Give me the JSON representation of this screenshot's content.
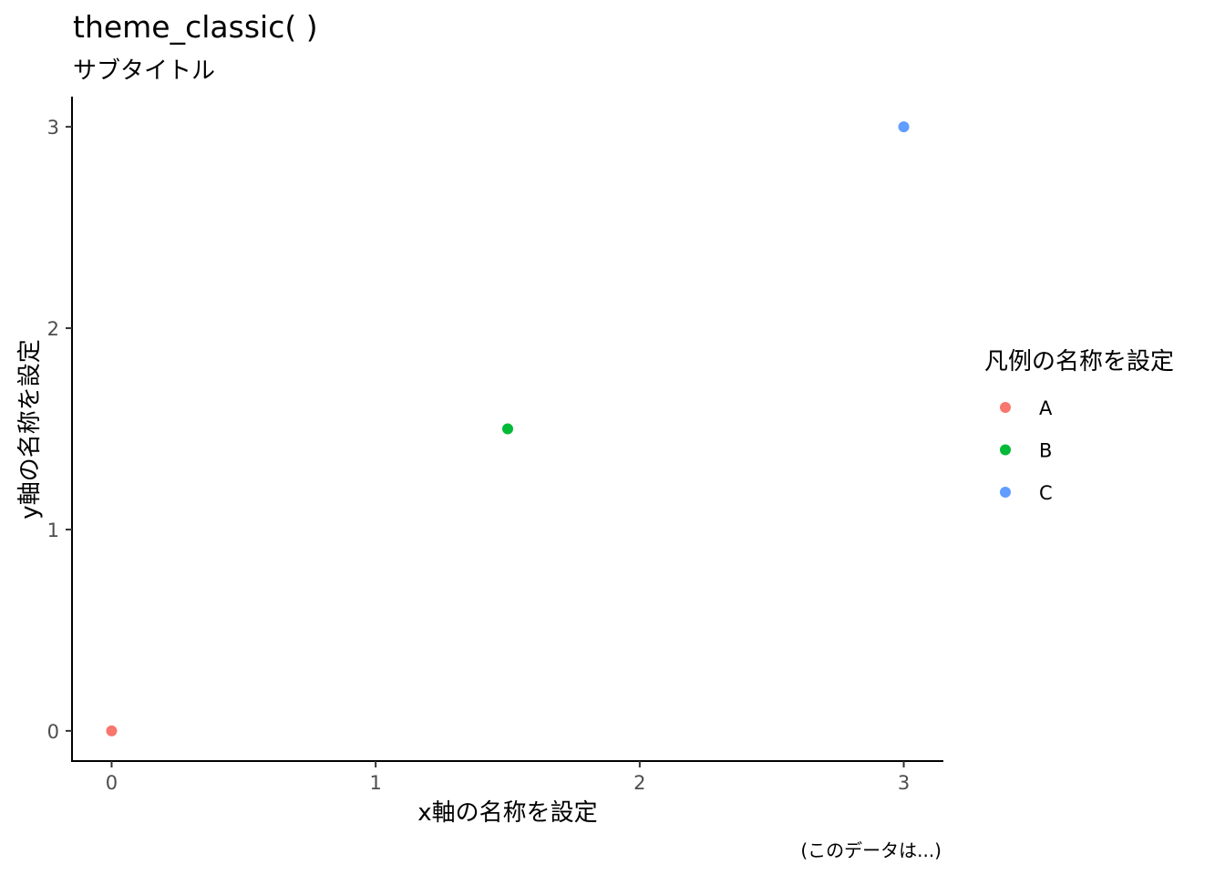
{
  "chart_data": {
    "type": "scatter",
    "title": "theme_classic( )",
    "subtitle": "サブタイトル",
    "xlabel": "x軸の名称を設定",
    "ylabel": "y軸の名称を設定",
    "caption": "(このデータは...)",
    "xlim": [
      -0.15,
      3.15
    ],
    "ylim": [
      -0.15,
      3.15
    ],
    "x_ticks": [
      0,
      1,
      2,
      3
    ],
    "y_ticks": [
      0,
      1,
      2,
      3
    ],
    "x_tick_labels": [
      "0",
      "1",
      "2",
      "3"
    ],
    "y_tick_labels": [
      "0",
      "1",
      "2",
      "3"
    ],
    "grid": false,
    "legend": {
      "title": "凡例の名称を設定",
      "position": "right"
    },
    "series": [
      {
        "name": "A",
        "color": "#F8766D",
        "points": [
          {
            "x": 0,
            "y": 0
          }
        ]
      },
      {
        "name": "B",
        "color": "#00BA38",
        "points": [
          {
            "x": 1.5,
            "y": 1.5
          }
        ]
      },
      {
        "name": "C",
        "color": "#619CFF",
        "points": [
          {
            "x": 3,
            "y": 3
          }
        ]
      }
    ]
  }
}
